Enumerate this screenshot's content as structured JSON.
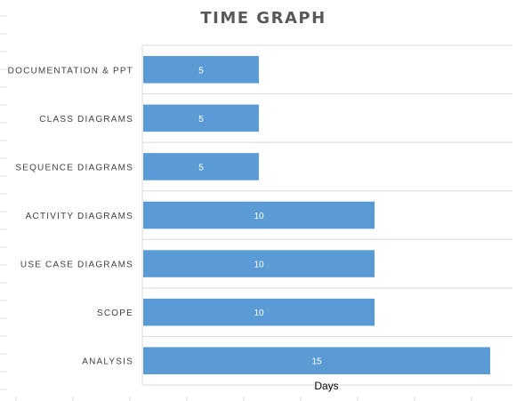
{
  "chart_data": {
    "type": "bar",
    "orientation": "horizontal",
    "title": "TIME GRAPH",
    "xlabel": "Days",
    "ylabel": "",
    "categories": [
      "DOCUMENTATION & PPT",
      "CLASS DIAGRAMS",
      "SEQUENCE DIAGRAMS",
      "ACTIVITY DIAGRAMS",
      "USE CASE DIAGRAMS",
      "SCOPE",
      "ANALYSIS"
    ],
    "values": [
      5,
      5,
      5,
      10,
      10,
      10,
      15
    ],
    "xlim": [
      0,
      16
    ],
    "data_labels": true,
    "grid": true,
    "legend": "none",
    "bar_color": "#5B9BD5"
  }
}
